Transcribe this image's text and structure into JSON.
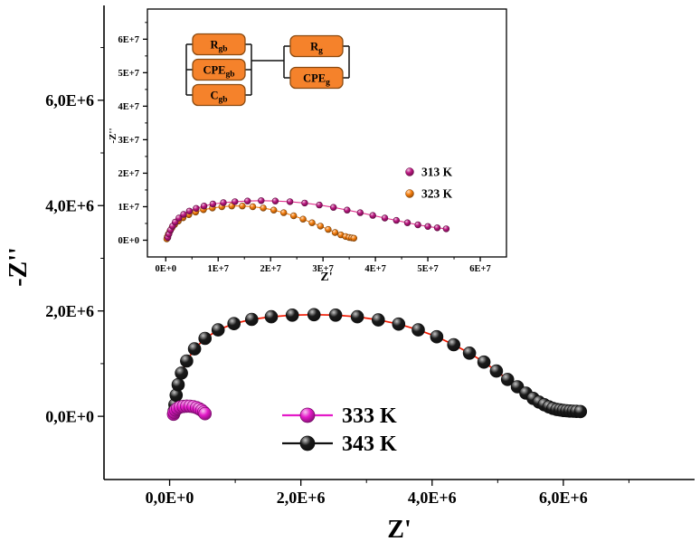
{
  "figure": {
    "background": "#ffffff"
  },
  "chart_data": [
    {
      "id": "main",
      "type": "scatter",
      "xlabel": "Z'",
      "ylabel": "-Z''",
      "xlim": [
        -1000000,
        8000000
      ],
      "ylim": [
        -1200000,
        7800000
      ],
      "grid": false,
      "legend_position": "inside bottom-center",
      "x_ticks": {
        "values": [
          0,
          2000000,
          4000000,
          6000000
        ],
        "labels": [
          "0,0E+0",
          "2,0E+6",
          "4,0E+6",
          "6,0E+6"
        ],
        "minor": [
          1000000,
          3000000,
          5000000,
          7000000
        ]
      },
      "y_ticks": {
        "values": [
          0,
          2000000,
          4000000,
          6000000
        ],
        "labels": [
          "0,0E+0",
          "2,0E+6",
          "4,0E+6",
          "6,0E+6"
        ],
        "minor": [
          1000000,
          3000000,
          5000000,
          7000000
        ]
      },
      "series": [
        {
          "name": "333 K",
          "color": "#e41ac8",
          "line_color": "#e41ac8",
          "legend_line_color": "#e41ac8",
          "points": [
            [
              60000,
              40000
            ],
            [
              70000,
              80000
            ],
            [
              90000,
              120000
            ],
            [
              120000,
              150000
            ],
            [
              160000,
              175000
            ],
            [
              210000,
              188000
            ],
            [
              260000,
              193000
            ],
            [
              310000,
              192000
            ],
            [
              360000,
              183000
            ],
            [
              410000,
              166000
            ],
            [
              450000,
              143000
            ],
            [
              490000,
              112000
            ],
            [
              520000,
              80000
            ],
            [
              540000,
              50000
            ]
          ]
        },
        {
          "name": "343 K",
          "color": "#1a1a1a",
          "line_color": "#f01800",
          "legend_line_color": "#111111",
          "points": [
            [
              70000,
              100000
            ],
            [
              80000,
              220000
            ],
            [
              100000,
              400000
            ],
            [
              130000,
              600000
            ],
            [
              180000,
              820000
            ],
            [
              260000,
              1050000
            ],
            [
              380000,
              1280000
            ],
            [
              540000,
              1480000
            ],
            [
              740000,
              1640000
            ],
            [
              980000,
              1760000
            ],
            [
              1250000,
              1840000
            ],
            [
              1550000,
              1890000
            ],
            [
              1870000,
              1920000
            ],
            [
              2200000,
              1930000
            ],
            [
              2530000,
              1920000
            ],
            [
              2860000,
              1890000
            ],
            [
              3180000,
              1830000
            ],
            [
              3490000,
              1750000
            ],
            [
              3790000,
              1640000
            ],
            [
              4070000,
              1510000
            ],
            [
              4330000,
              1360000
            ],
            [
              4570000,
              1200000
            ],
            [
              4790000,
              1030000
            ],
            [
              4980000,
              860000
            ],
            [
              5150000,
              700000
            ],
            [
              5300000,
              560000
            ],
            [
              5430000,
              440000
            ],
            [
              5540000,
              340000
            ],
            [
              5630000,
              270000
            ],
            [
              5710000,
              220000
            ],
            [
              5780000,
              180000
            ],
            [
              5840000,
              150000
            ],
            [
              5900000,
              130000
            ],
            [
              5950000,
              120000
            ],
            [
              6000000,
              110000
            ],
            [
              6050000,
              105000
            ],
            [
              6100000,
              100000
            ],
            [
              6150000,
              96000
            ],
            [
              6200000,
              93000
            ],
            [
              6260000,
              90000
            ]
          ]
        }
      ]
    },
    {
      "id": "inset",
      "type": "scatter",
      "xlabel": "Z'",
      "ylabel": "-Z''",
      "xlim": [
        -3500000,
        65000000
      ],
      "ylim": [
        -5000000,
        69000000
      ],
      "grid": false,
      "legend_position": "inside right",
      "x_ticks": {
        "values": [
          0,
          10000000,
          20000000,
          30000000,
          40000000,
          50000000,
          60000000
        ],
        "labels": [
          "0E+0",
          "1E+7",
          "2E+7",
          "3E+7",
          "4E+7",
          "5E+7",
          "6E+7"
        ],
        "minor": [
          5000000,
          15000000,
          25000000,
          35000000,
          45000000,
          55000000
        ]
      },
      "y_ticks": {
        "values": [
          0,
          10000000,
          20000000,
          30000000,
          40000000,
          50000000,
          60000000
        ],
        "labels": [
          "0E+0",
          "1E+7",
          "2E+7",
          "3E+7",
          "4E+7",
          "5E+7",
          "6E+7"
        ],
        "minor": [
          5000000,
          15000000,
          25000000,
          35000000,
          45000000,
          55000000,
          65000000
        ]
      },
      "series": [
        {
          "name": "313 K",
          "color": "#bb1680",
          "line_color": "#e0338f",
          "legend_line_color": "#e0338f",
          "points": [
            [
              400000,
              800000
            ],
            [
              600000,
              1800000
            ],
            [
              900000,
              3000000
            ],
            [
              1300000,
              4200000
            ],
            [
              1800000,
              5400000
            ],
            [
              2500000,
              6600000
            ],
            [
              3400000,
              7700000
            ],
            [
              4500000,
              8700000
            ],
            [
              5800000,
              9500000
            ],
            [
              7300000,
              10200000
            ],
            [
              9000000,
              10800000
            ],
            [
              11000000,
              11200000
            ],
            [
              13200000,
              11500000
            ],
            [
              15600000,
              11700000
            ],
            [
              18200000,
              11800000
            ],
            [
              20900000,
              11700000
            ],
            [
              23700000,
              11500000
            ],
            [
              26500000,
              11100000
            ],
            [
              29300000,
              10500000
            ],
            [
              32000000,
              9800000
            ],
            [
              34600000,
              9000000
            ],
            [
              37100000,
              8200000
            ],
            [
              39500000,
              7400000
            ],
            [
              41800000,
              6600000
            ],
            [
              44000000,
              5900000
            ],
            [
              46100000,
              5200000
            ],
            [
              48100000,
              4600000
            ],
            [
              50000000,
              4100000
            ],
            [
              51800000,
              3700000
            ],
            [
              53500000,
              3400000
            ]
          ]
        },
        {
          "name": "323 K",
          "color": "#f67d0c",
          "line_color": "#f67d0c",
          "legend_line_color": "#f67d0c",
          "points": [
            [
              200000,
              400000
            ],
            [
              300000,
              1000000
            ],
            [
              500000,
              1800000
            ],
            [
              800000,
              2700000
            ],
            [
              1200000,
              3700000
            ],
            [
              1700000,
              4700000
            ],
            [
              2400000,
              5700000
            ],
            [
              3300000,
              6700000
            ],
            [
              4400000,
              7600000
            ],
            [
              5700000,
              8400000
            ],
            [
              7200000,
              9100000
            ],
            [
              8900000,
              9600000
            ],
            [
              10700000,
              10000000
            ],
            [
              12600000,
              10200000
            ],
            [
              14600000,
              10200000
            ],
            [
              16600000,
              10000000
            ],
            [
              18600000,
              9600000
            ],
            [
              20600000,
              9000000
            ],
            [
              22500000,
              8200000
            ],
            [
              24400000,
              7300000
            ],
            [
              26200000,
              6300000
            ],
            [
              27900000,
              5200000
            ],
            [
              29500000,
              4200000
            ],
            [
              31000000,
              3200000
            ],
            [
              32300000,
              2300000
            ],
            [
              33400000,
              1600000
            ],
            [
              34300000,
              1100000
            ],
            [
              35000000,
              800000
            ],
            [
              35500000,
              700000
            ],
            [
              35900000,
              600000
            ]
          ]
        }
      ]
    }
  ],
  "circuit": {
    "box_fill": "#f5822b",
    "box_stroke": "#8a4a10",
    "wire_color": "#111111",
    "left_group": [
      {
        "main": "R",
        "sub": "gb"
      },
      {
        "main": "CPE",
        "sub": "gb"
      },
      {
        "main": "C",
        "sub": "gb"
      }
    ],
    "right_group": [
      {
        "main": "R",
        "sub": "g"
      },
      {
        "main": "CPE",
        "sub": "g"
      }
    ]
  }
}
